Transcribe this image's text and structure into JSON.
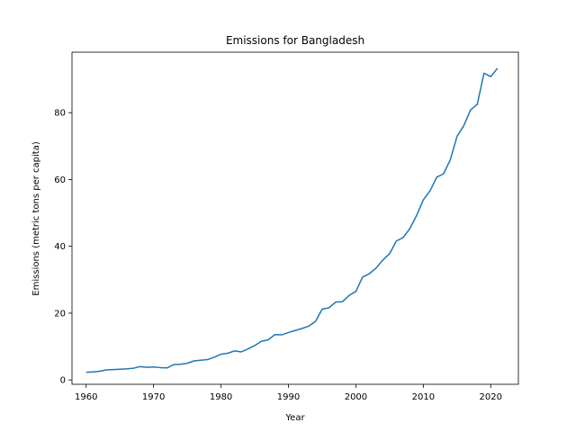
{
  "chart_data": {
    "type": "line",
    "title": "Emissions for Bangladesh",
    "xlabel": "Year",
    "ylabel": "Emissions (metric tons per capita)",
    "xlim": [
      1957.9,
      2024.1
    ],
    "ylim": [
      -1.3,
      98.1
    ],
    "xticks": [
      1960,
      1970,
      1980,
      1990,
      2000,
      2010,
      2020
    ],
    "yticks": [
      0,
      20,
      40,
      60,
      80
    ],
    "grid": false,
    "line_color": "#1f77b4",
    "series": [
      {
        "x": [
          1960,
          1961,
          1962,
          1963,
          1964,
          1965,
          1966,
          1967,
          1968,
          1969,
          1970,
          1971,
          1972,
          1973,
          1974,
          1975,
          1976,
          1977,
          1978,
          1979,
          1980,
          1981,
          1982,
          1983,
          1984,
          1985,
          1986,
          1987,
          1988,
          1989,
          1990,
          1991,
          1992,
          1993,
          1994,
          1995,
          1996,
          1997,
          1998,
          1999,
          2000,
          2001,
          2002,
          2003,
          2004,
          2005,
          2006,
          2007,
          2008,
          2009,
          2010,
          2011,
          2012,
          2013,
          2014,
          2015,
          2016,
          2017,
          2018,
          2019,
          2020,
          2021
        ],
        "values": [
          2.3,
          2.4,
          2.6,
          3.0,
          3.1,
          3.2,
          3.3,
          3.5,
          4.0,
          3.8,
          3.9,
          3.7,
          3.6,
          4.6,
          4.7,
          5.0,
          5.7,
          5.9,
          6.1,
          6.8,
          7.7,
          8.0,
          8.7,
          8.4,
          9.3,
          10.3,
          11.6,
          12.0,
          13.6,
          13.5,
          14.2,
          14.8,
          15.4,
          16.1,
          17.5,
          21.2,
          21.6,
          23.3,
          23.4,
          25.3,
          26.5,
          30.8,
          31.8,
          33.5,
          35.9,
          37.8,
          41.6,
          42.6,
          45.3,
          49.2,
          53.9,
          56.6,
          60.7,
          61.7,
          65.9,
          72.9,
          76.1,
          80.8,
          82.5,
          91.8,
          90.8,
          93.3
        ]
      }
    ]
  }
}
